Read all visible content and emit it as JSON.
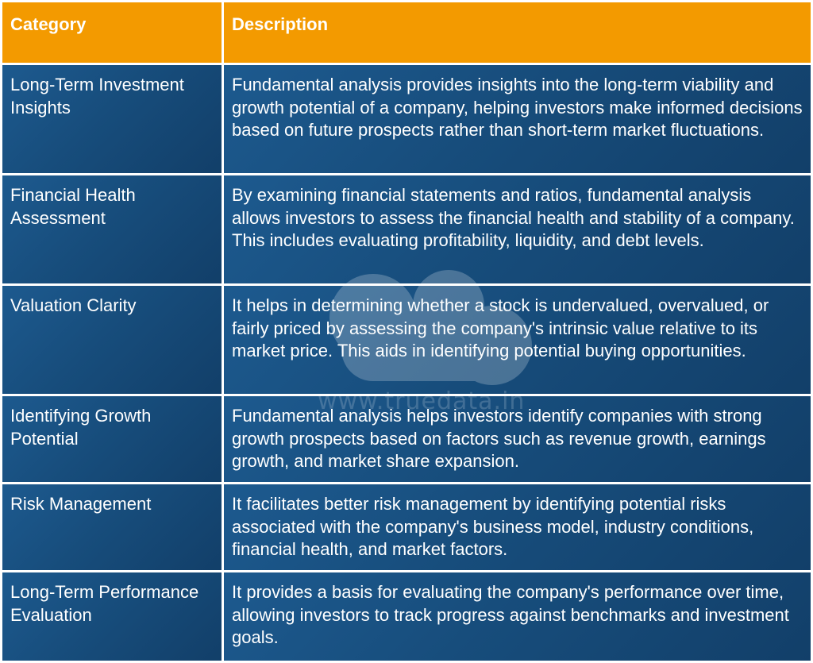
{
  "table": {
    "headers": {
      "category": "Category",
      "description": "Description"
    },
    "rows": [
      {
        "category": "Long-Term Investment Insights",
        "description": "Fundamental analysis provides insights into the long-term viability and growth potential of a company, helping investors make informed decisions based on future prospects rather than short-term market fluctuations."
      },
      {
        "category": "Financial Health Assessment",
        "description": "By examining financial statements and ratios, fundamental analysis allows investors to assess the financial health and stability of a company. This includes evaluating profitability, liquidity, and debt levels."
      },
      {
        "category": "Valuation Clarity",
        "description": "It helps in determining whether a stock is undervalued, overvalued, or fairly priced by assessing the company's intrinsic value relative to its market price. This aids in identifying potential buying opportunities."
      },
      {
        "category": "Identifying Growth Potential",
        "description": "Fundamental analysis helps investors identify companies with strong growth prospects based on factors such as revenue growth, earnings growth, and market share expansion."
      },
      {
        "category": "Risk Management",
        "description": "It facilitates better risk management by identifying potential risks associated with the company's business model, industry conditions, financial health, and market factors."
      },
      {
        "category": "Long-Term Performance Evaluation",
        "description": "It provides a basis for evaluating the company's performance over time, allowing investors to track progress against benchmarks and investment goals."
      }
    ]
  },
  "watermark": {
    "text": "www.truedata.in"
  },
  "colors": {
    "header_bg": "#f39a00",
    "cell_bg": "#174d7c",
    "text": "#ffffff"
  }
}
